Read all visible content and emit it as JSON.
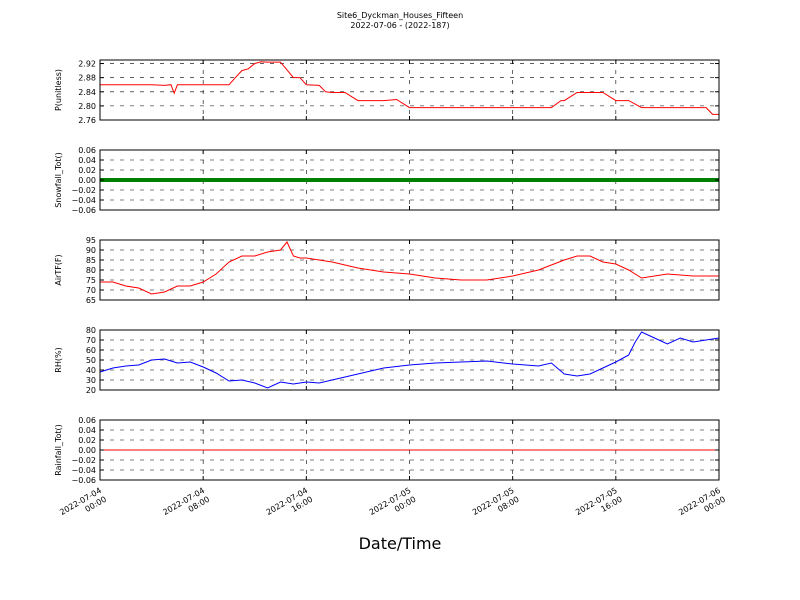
{
  "title": "Site6_Dyckman_Houses_Fifteen",
  "subtitle": "2022-07-06 - (2022-187)",
  "xlabel": "Date/Time",
  "x_ticks": [
    [
      "2022-07-04",
      "00:00"
    ],
    [
      "2022-07-04",
      "08:00"
    ],
    [
      "2022-07-04",
      "16:00"
    ],
    [
      "2022-07-05",
      "00:00"
    ],
    [
      "2022-07-05",
      "08:00"
    ],
    [
      "2022-07-05",
      "16:00"
    ],
    [
      "2022-07-06",
      "00:00"
    ]
  ],
  "chart_data": [
    {
      "type": "line",
      "ylabel": "P(unitless)",
      "color": "#ff0000",
      "ylim": [
        2.76,
        2.93
      ],
      "yticks": [
        "2.92",
        "2.88",
        "2.84",
        "2.80",
        "2.76"
      ],
      "ytick_values": [
        2.92,
        2.88,
        2.84,
        2.8,
        2.76
      ],
      "xlim": [
        "2022-07-04 00:00",
        "2022-07-06 00:00"
      ],
      "grid": true,
      "x": [
        "2022-07-04 00:00",
        "2022-07-04 01:00",
        "2022-07-04 02:00",
        "2022-07-04 03:00",
        "2022-07-04 04:00",
        "2022-07-04 05:00",
        "2022-07-04 05:30",
        "2022-07-04 05:45",
        "2022-07-04 06:00",
        "2022-07-04 07:00",
        "2022-07-04 08:00",
        "2022-07-04 09:00",
        "2022-07-04 10:00",
        "2022-07-04 10:30",
        "2022-07-04 11:00",
        "2022-07-04 11:30",
        "2022-07-04 12:00",
        "2022-07-04 12:30",
        "2022-07-04 13:00",
        "2022-07-04 14:00",
        "2022-07-04 14:30",
        "2022-07-04 15:00",
        "2022-07-04 15:30",
        "2022-07-04 16:00",
        "2022-07-04 17:00",
        "2022-07-04 17:30",
        "2022-07-04 18:00",
        "2022-07-04 19:00",
        "2022-07-04 20:00",
        "2022-07-04 21:00",
        "2022-07-04 22:00",
        "2022-07-04 23:00",
        "2022-07-05 00:00",
        "2022-07-05 02:00",
        "2022-07-05 04:00",
        "2022-07-05 06:00",
        "2022-07-05 08:00",
        "2022-07-05 10:00",
        "2022-07-05 11:00",
        "2022-07-05 11:45",
        "2022-07-05 12:00",
        "2022-07-05 13:00",
        "2022-07-05 14:00",
        "2022-07-05 15:00",
        "2022-07-05 16:00",
        "2022-07-05 16:30",
        "2022-07-05 17:00",
        "2022-07-05 18:00",
        "2022-07-05 20:00",
        "2022-07-05 22:00",
        "2022-07-05 23:00",
        "2022-07-05 23:30",
        "2022-07-06 00:00"
      ],
      "values": [
        2.86,
        2.86,
        2.86,
        2.86,
        2.86,
        2.858,
        2.86,
        2.836,
        2.86,
        2.86,
        2.86,
        2.86,
        2.86,
        2.88,
        2.9,
        2.905,
        2.92,
        2.925,
        2.924,
        2.924,
        2.902,
        2.88,
        2.88,
        2.86,
        2.858,
        2.84,
        2.838,
        2.838,
        2.815,
        2.815,
        2.815,
        2.818,
        2.795,
        2.795,
        2.795,
        2.795,
        2.795,
        2.795,
        2.795,
        2.815,
        2.815,
        2.838,
        2.838,
        2.838,
        2.815,
        2.815,
        2.815,
        2.795,
        2.795,
        2.795,
        2.795,
        2.776,
        2.776
      ]
    },
    {
      "type": "line",
      "ylabel": "Snowfall_Tot()",
      "color": "#008000",
      "ylim": [
        -0.06,
        0.06
      ],
      "yticks": [
        "0.06",
        "0.04",
        "0.02",
        "0.00",
        "−0.02",
        "−0.04",
        "−0.06"
      ],
      "ytick_values": [
        0.06,
        0.04,
        0.02,
        0.0,
        -0.02,
        -0.04,
        -0.06
      ],
      "xlim": [
        "2022-07-04 00:00",
        "2022-07-06 00:00"
      ],
      "grid": true,
      "x": [
        "2022-07-04 00:00",
        "2022-07-06 00:00"
      ],
      "values": [
        0.0,
        0.0
      ]
    },
    {
      "type": "line",
      "ylabel": "AirTF(F)",
      "color": "#ff0000",
      "ylim": [
        65,
        95
      ],
      "yticks": [
        "95",
        "90",
        "85",
        "80",
        "75",
        "70",
        "65"
      ],
      "ytick_values": [
        95,
        90,
        85,
        80,
        75,
        70,
        65
      ],
      "xlim": [
        "2022-07-04 00:00",
        "2022-07-06 00:00"
      ],
      "grid": true,
      "x": [
        "2022-07-04 00:00",
        "2022-07-04 01:00",
        "2022-07-04 02:00",
        "2022-07-04 03:00",
        "2022-07-04 04:00",
        "2022-07-04 05:00",
        "2022-07-04 06:00",
        "2022-07-04 07:00",
        "2022-07-04 08:00",
        "2022-07-04 09:00",
        "2022-07-04 10:00",
        "2022-07-04 11:00",
        "2022-07-04 12:00",
        "2022-07-04 13:00",
        "2022-07-04 14:00",
        "2022-07-04 14:30",
        "2022-07-04 15:00",
        "2022-07-04 15:30",
        "2022-07-04 16:00",
        "2022-07-04 17:00",
        "2022-07-04 18:00",
        "2022-07-04 20:00",
        "2022-07-04 22:00",
        "2022-07-05 00:00",
        "2022-07-05 02:00",
        "2022-07-05 04:00",
        "2022-07-05 06:00",
        "2022-07-05 08:00",
        "2022-07-05 10:00",
        "2022-07-05 12:00",
        "2022-07-05 13:00",
        "2022-07-05 14:00",
        "2022-07-05 15:00",
        "2022-07-05 16:00",
        "2022-07-05 17:00",
        "2022-07-05 18:00",
        "2022-07-05 20:00",
        "2022-07-05 22:00",
        "2022-07-06 00:00"
      ],
      "values": [
        74,
        74,
        72,
        71,
        68,
        69,
        72,
        72,
        74,
        78,
        84,
        87,
        87,
        89,
        90,
        94,
        87,
        86,
        86,
        85,
        84,
        81,
        79,
        78,
        76,
        75,
        75,
        77,
        80,
        85,
        87,
        87,
        84,
        83,
        80,
        76,
        78,
        77,
        77
      ]
    },
    {
      "type": "line",
      "ylabel": "RH(%)",
      "color": "#0000ff",
      "ylim": [
        20,
        80
      ],
      "yticks": [
        "80",
        "70",
        "60",
        "50",
        "40",
        "30",
        "20"
      ],
      "ytick_values": [
        80,
        70,
        60,
        50,
        40,
        30,
        20
      ],
      "xlim": [
        "2022-07-04 00:00",
        "2022-07-06 00:00"
      ],
      "grid": true,
      "x": [
        "2022-07-04 00:00",
        "2022-07-04 01:00",
        "2022-07-04 02:00",
        "2022-07-04 03:00",
        "2022-07-04 04:00",
        "2022-07-04 05:00",
        "2022-07-04 06:00",
        "2022-07-04 07:00",
        "2022-07-04 08:00",
        "2022-07-04 09:00",
        "2022-07-04 10:00",
        "2022-07-04 11:00",
        "2022-07-04 12:00",
        "2022-07-04 13:00",
        "2022-07-04 14:00",
        "2022-07-04 15:00",
        "2022-07-04 16:00",
        "2022-07-04 17:00",
        "2022-07-04 18:00",
        "2022-07-04 20:00",
        "2022-07-04 22:00",
        "2022-07-05 00:00",
        "2022-07-05 02:00",
        "2022-07-05 04:00",
        "2022-07-05 06:00",
        "2022-07-05 08:00",
        "2022-07-05 10:00",
        "2022-07-05 11:00",
        "2022-07-05 12:00",
        "2022-07-05 13:00",
        "2022-07-05 14:00",
        "2022-07-05 15:00",
        "2022-07-05 16:00",
        "2022-07-05 17:00",
        "2022-07-05 17:30",
        "2022-07-05 18:00",
        "2022-07-05 19:00",
        "2022-07-05 20:00",
        "2022-07-05 21:00",
        "2022-07-05 22:00",
        "2022-07-05 23:00",
        "2022-07-06 00:00"
      ],
      "values": [
        38,
        42,
        44,
        45,
        50,
        51,
        47,
        48,
        43,
        37,
        29,
        30,
        27,
        22,
        28,
        26,
        28,
        27,
        30,
        36,
        42,
        45,
        47,
        48,
        49,
        46,
        44,
        47,
        36,
        34,
        36,
        42,
        48,
        55,
        68,
        78,
        72,
        66,
        72,
        68,
        70,
        72
      ]
    },
    {
      "type": "line",
      "ylabel": "Rainfall_Tot()",
      "color": "#ff0000",
      "ylim": [
        -0.06,
        0.06
      ],
      "yticks": [
        "0.06",
        "0.04",
        "0.02",
        "0.00",
        "−0.02",
        "−0.04",
        "−0.06"
      ],
      "ytick_values": [
        0.06,
        0.04,
        0.02,
        0.0,
        -0.02,
        -0.04,
        -0.06
      ],
      "xlim": [
        "2022-07-04 00:00",
        "2022-07-06 00:00"
      ],
      "grid": true,
      "x": [
        "2022-07-04 00:00",
        "2022-07-06 00:00"
      ],
      "values": [
        0.0,
        0.0
      ]
    }
  ]
}
